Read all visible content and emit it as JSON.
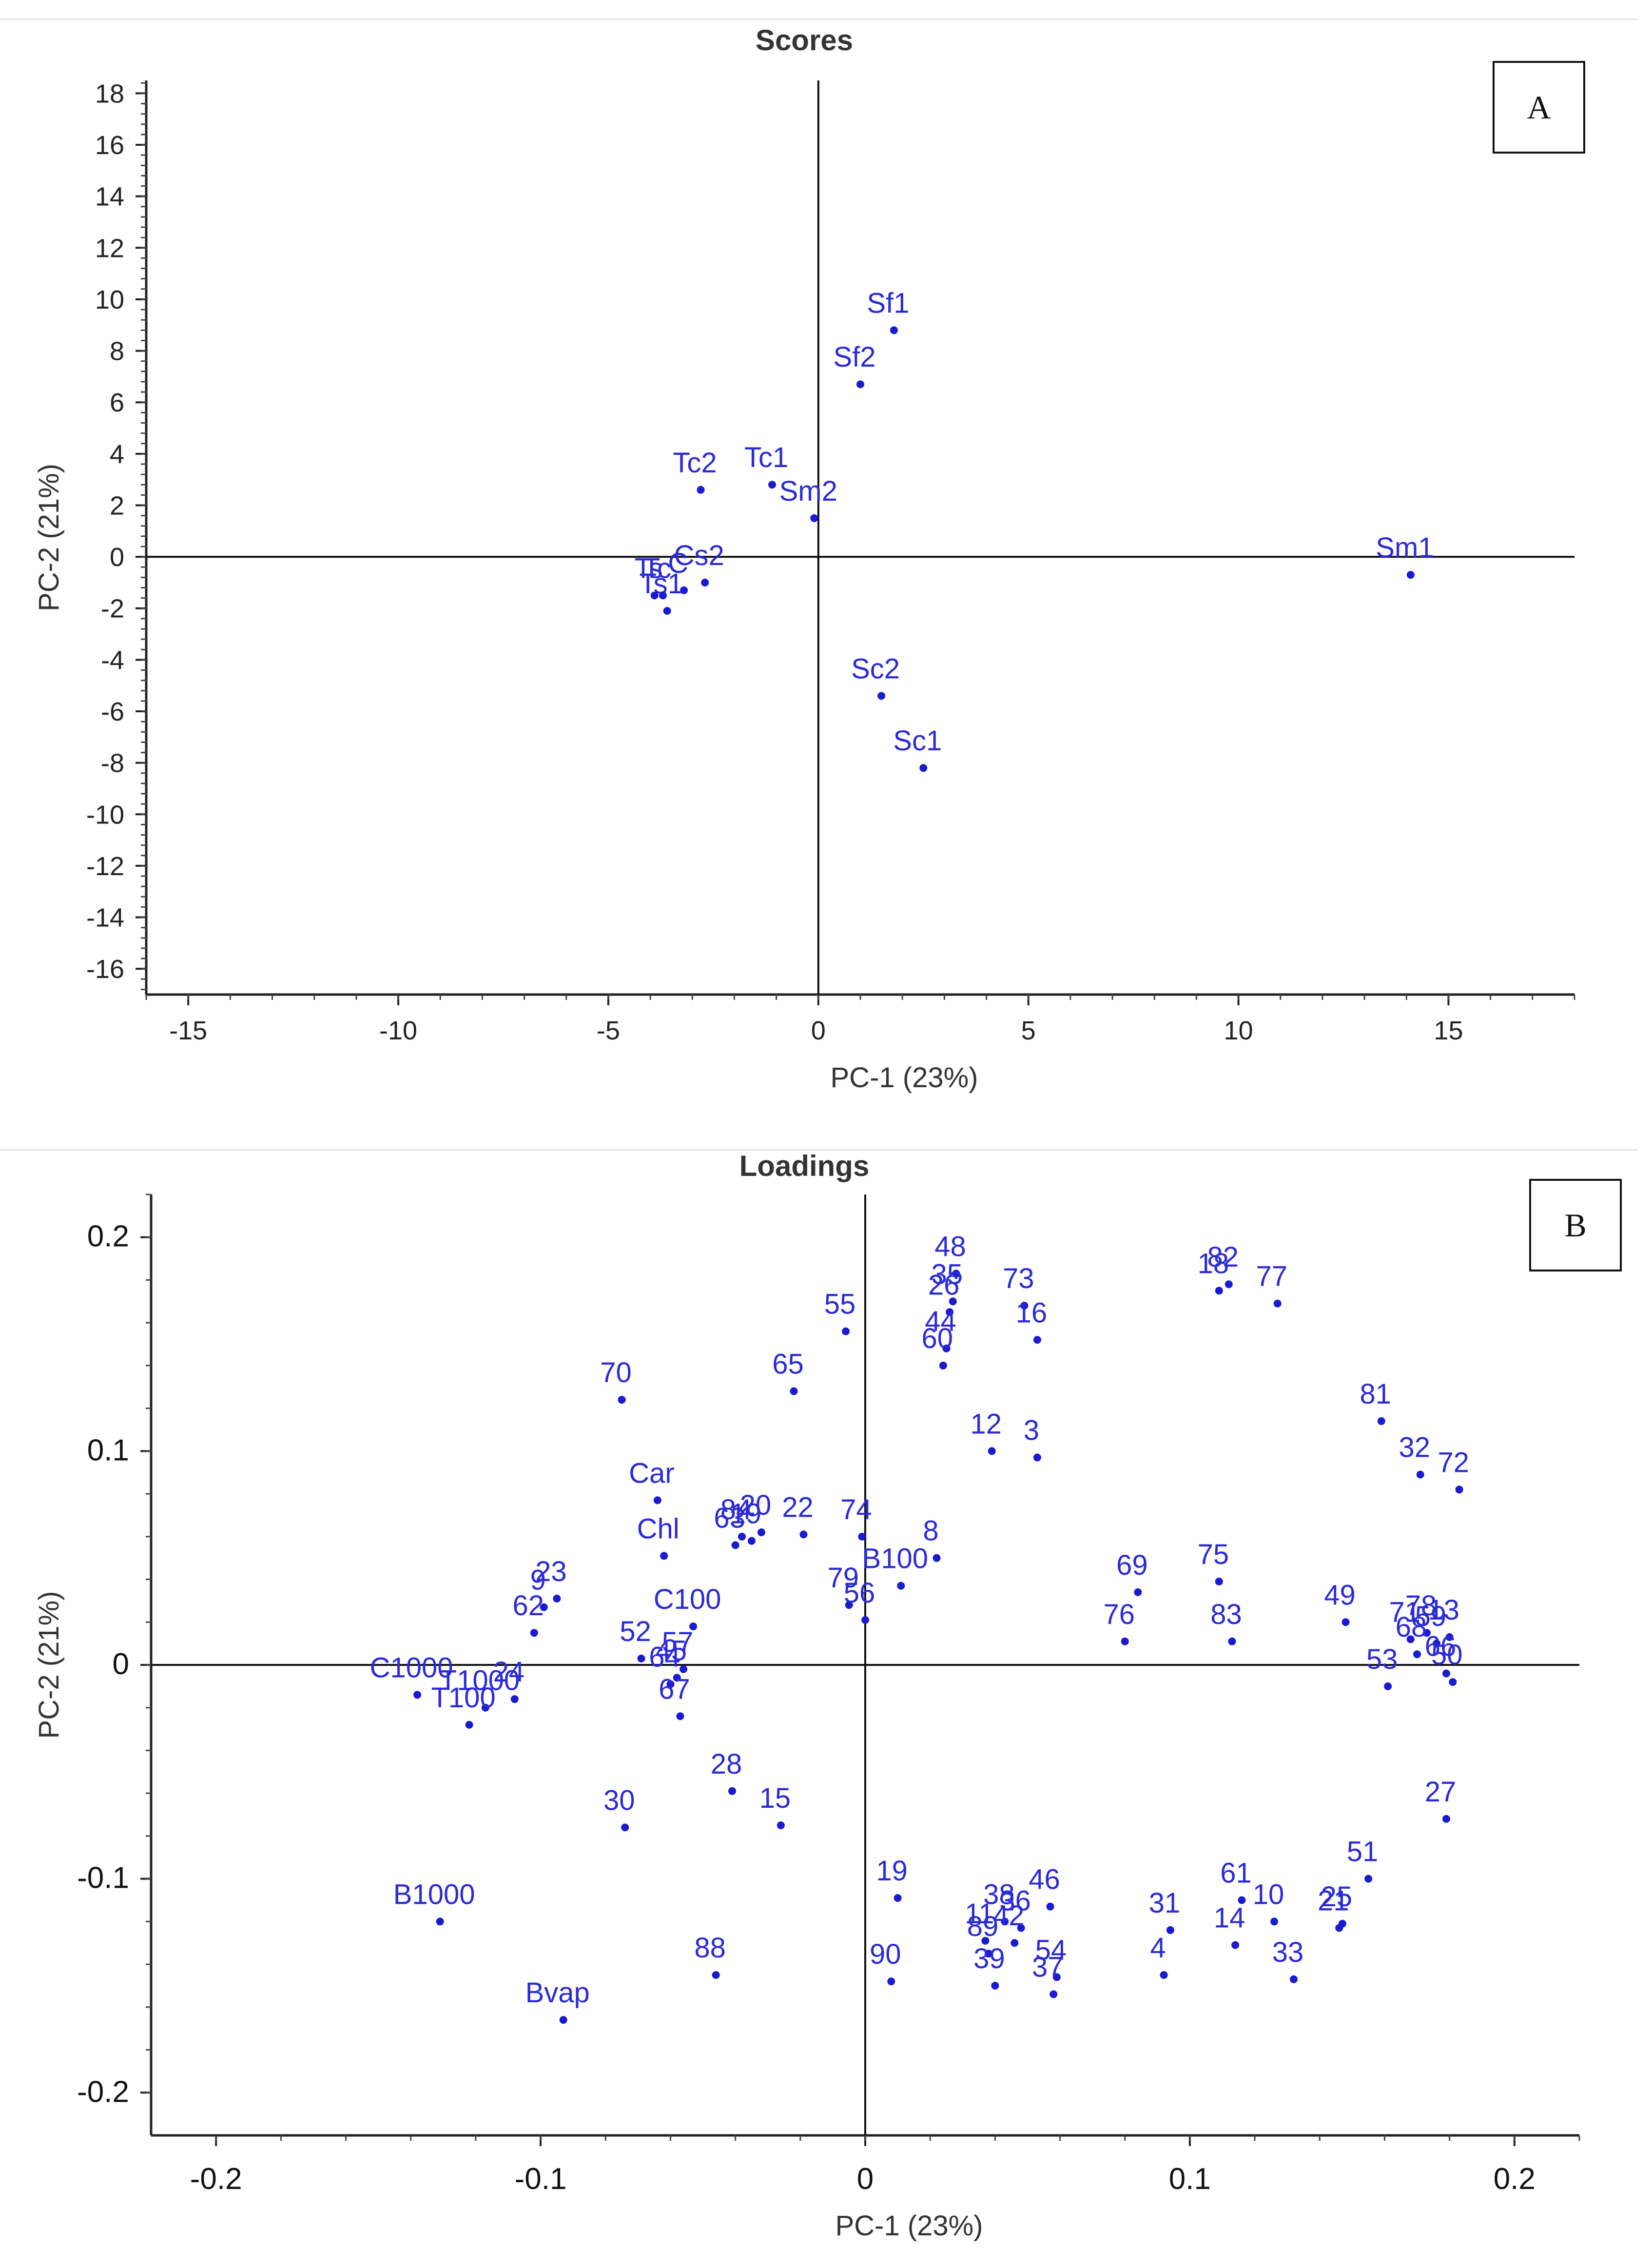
{
  "charts": {
    "A": {
      "letter": "A",
      "chart_data": {
        "type": "scatter",
        "title": "Scores",
        "xlabel": "PC-1 (23%)",
        "ylabel": "PC-2 (21%)",
        "xlim": [
          -16,
          18
        ],
        "ylim": [
          -17,
          18.5
        ],
        "xticks": [
          -15,
          -10,
          -5,
          0,
          5,
          10,
          15
        ],
        "yticks": [
          18,
          16,
          14,
          12,
          10,
          8,
          6,
          4,
          2,
          0,
          -2,
          -4,
          -6,
          -8,
          -10,
          -12,
          -14,
          -16
        ],
        "points": [
          {
            "label": "Sf1",
            "x": 1.8,
            "y": 8.8
          },
          {
            "label": "Sf2",
            "x": 1.0,
            "y": 6.7
          },
          {
            "label": "Tc1",
            "x": -1.1,
            "y": 2.8
          },
          {
            "label": "Sm2",
            "x": -0.1,
            "y": 1.5
          },
          {
            "label": "Tc2",
            "x": -2.8,
            "y": 2.6
          },
          {
            "label": "Cs2",
            "x": -2.7,
            "y": -1.0
          },
          {
            "label": "C",
            "x": -3.2,
            "y": -1.3
          },
          {
            "label": "Ts1",
            "x": -3.6,
            "y": -2.1
          },
          {
            "label": "Tc",
            "x": -3.7,
            "y": -1.5
          },
          {
            "label": "Ts",
            "x": -3.9,
            "y": -1.5
          },
          {
            "label": "Sm1",
            "x": 14.1,
            "y": -0.7
          },
          {
            "label": "Sc2",
            "x": 1.5,
            "y": -5.4
          },
          {
            "label": "Sc1",
            "x": 2.5,
            "y": -8.2
          }
        ]
      }
    },
    "B": {
      "letter": "B",
      "chart_data": {
        "type": "scatter",
        "title": "Loadings",
        "xlabel": "PC-1 (23%)",
        "ylabel": "PC-2 (21%)",
        "xlim": [
          -0.22,
          0.22
        ],
        "ylim": [
          -0.22,
          0.22
        ],
        "xticks": [
          -0.2,
          -0.1,
          0,
          0.1,
          0.2
        ],
        "yticks": [
          0.2,
          0.1,
          0,
          -0.1,
          -0.2
        ],
        "points": [
          {
            "label": "48",
            "x": 0.028,
            "y": 0.183
          },
          {
            "label": "35",
            "x": 0.027,
            "y": 0.17
          },
          {
            "label": "26",
            "x": 0.026,
            "y": 0.165
          },
          {
            "label": "44",
            "x": 0.025,
            "y": 0.148
          },
          {
            "label": "60",
            "x": 0.024,
            "y": 0.14
          },
          {
            "label": "73",
            "x": 0.049,
            "y": 0.168
          },
          {
            "label": "16",
            "x": 0.053,
            "y": 0.152
          },
          {
            "label": "18",
            "x": 0.109,
            "y": 0.175
          },
          {
            "label": "82",
            "x": 0.112,
            "y": 0.178
          },
          {
            "label": "77",
            "x": 0.127,
            "y": 0.169
          },
          {
            "label": "55",
            "x": -0.006,
            "y": 0.156
          },
          {
            "label": "65",
            "x": -0.022,
            "y": 0.128
          },
          {
            "label": "70",
            "x": -0.075,
            "y": 0.124
          },
          {
            "label": "12",
            "x": 0.039,
            "y": 0.1
          },
          {
            "label": "3",
            "x": 0.053,
            "y": 0.097
          },
          {
            "label": "81",
            "x": 0.159,
            "y": 0.114
          },
          {
            "label": "32",
            "x": 0.171,
            "y": 0.089
          },
          {
            "label": "72",
            "x": 0.183,
            "y": 0.082
          },
          {
            "label": "Car",
            "x": -0.064,
            "y": 0.077
          },
          {
            "label": "20",
            "x": -0.032,
            "y": 0.062
          },
          {
            "label": "84",
            "x": -0.038,
            "y": 0.06
          },
          {
            "label": "19b",
            "x": -0.035,
            "y": 0.058
          },
          {
            "label": "63",
            "x": -0.04,
            "y": 0.056
          },
          {
            "label": "22",
            "x": -0.019,
            "y": 0.061
          },
          {
            "label": "74",
            "x": -0.001,
            "y": 0.06
          },
          {
            "label": "8",
            "x": 0.022,
            "y": 0.05
          },
          {
            "label": "Chl",
            "x": -0.062,
            "y": 0.051
          },
          {
            "label": "B100",
            "x": 0.011,
            "y": 0.037
          },
          {
            "label": "79",
            "x": -0.005,
            "y": 0.028
          },
          {
            "label": "56",
            "x": 0.0,
            "y": 0.021
          },
          {
            "label": "69",
            "x": 0.084,
            "y": 0.034
          },
          {
            "label": "76",
            "x": 0.08,
            "y": 0.011
          },
          {
            "label": "75",
            "x": 0.109,
            "y": 0.039
          },
          {
            "label": "83",
            "x": 0.113,
            "y": 0.011
          },
          {
            "label": "49",
            "x": 0.148,
            "y": 0.02
          },
          {
            "label": "71",
            "x": 0.168,
            "y": 0.012
          },
          {
            "label": "78",
            "x": 0.173,
            "y": 0.015
          },
          {
            "label": "13",
            "x": 0.18,
            "y": 0.013
          },
          {
            "label": "68",
            "x": 0.17,
            "y": 0.005
          },
          {
            "label": "59",
            "x": 0.176,
            "y": 0.01
          },
          {
            "label": "53",
            "x": 0.161,
            "y": -0.01
          },
          {
            "label": "66",
            "x": 0.179,
            "y": -0.004
          },
          {
            "label": "50",
            "x": 0.181,
            "y": -0.008
          },
          {
            "label": "23",
            "x": -0.095,
            "y": 0.031
          },
          {
            "label": "9",
            "x": -0.099,
            "y": 0.027
          },
          {
            "label": "62",
            "x": -0.102,
            "y": 0.015
          },
          {
            "label": "C100",
            "x": -0.053,
            "y": 0.018
          },
          {
            "label": "52",
            "x": -0.069,
            "y": 0.003
          },
          {
            "label": "57",
            "x": -0.056,
            "y": -0.002
          },
          {
            "label": "45",
            "x": -0.058,
            "y": -0.006
          },
          {
            "label": "64",
            "x": -0.06,
            "y": -0.009
          },
          {
            "label": "67",
            "x": -0.057,
            "y": -0.024
          },
          {
            "label": "C1000",
            "x": -0.138,
            "y": -0.014
          },
          {
            "label": "T1000",
            "x": -0.117,
            "y": -0.02
          },
          {
            "label": "24",
            "x": -0.108,
            "y": -0.016
          },
          {
            "label": "T100",
            "x": -0.122,
            "y": -0.028
          },
          {
            "label": "28",
            "x": -0.041,
            "y": -0.059
          },
          {
            "label": "15",
            "x": -0.026,
            "y": -0.075
          },
          {
            "label": "30",
            "x": -0.074,
            "y": -0.076
          },
          {
            "label": "27",
            "x": 0.179,
            "y": -0.072
          },
          {
            "label": "51",
            "x": 0.155,
            "y": -0.1
          },
          {
            "label": "25",
            "x": 0.147,
            "y": -0.121
          },
          {
            "label": "21",
            "x": 0.146,
            "y": -0.123
          },
          {
            "label": "61",
            "x": 0.116,
            "y": -0.11
          },
          {
            "label": "14",
            "x": 0.114,
            "y": -0.131
          },
          {
            "label": "10",
            "x": 0.126,
            "y": -0.12
          },
          {
            "label": "33",
            "x": 0.132,
            "y": -0.147
          },
          {
            "label": "31",
            "x": 0.094,
            "y": -0.124
          },
          {
            "label": "4",
            "x": 0.092,
            "y": -0.145
          },
          {
            "label": "19",
            "x": 0.01,
            "y": -0.109
          },
          {
            "label": "90",
            "x": 0.008,
            "y": -0.148
          },
          {
            "label": "46",
            "x": 0.057,
            "y": -0.113
          },
          {
            "label": "38",
            "x": 0.043,
            "y": -0.12
          },
          {
            "label": "36",
            "x": 0.048,
            "y": -0.123
          },
          {
            "label": "11",
            "x": 0.037,
            "y": -0.129
          },
          {
            "label": "89",
            "x": 0.038,
            "y": -0.135
          },
          {
            "label": "42",
            "x": 0.046,
            "y": -0.13
          },
          {
            "label": "54",
            "x": 0.059,
            "y": -0.146
          },
          {
            "label": "37",
            "x": 0.058,
            "y": -0.154
          },
          {
            "label": "39",
            "x": 0.04,
            "y": -0.15
          },
          {
            "label": "B1000",
            "x": -0.131,
            "y": -0.12
          },
          {
            "label": "88",
            "x": -0.046,
            "y": -0.145
          },
          {
            "label": "Bvap",
            "x": -0.093,
            "y": -0.166
          }
        ]
      }
    }
  }
}
